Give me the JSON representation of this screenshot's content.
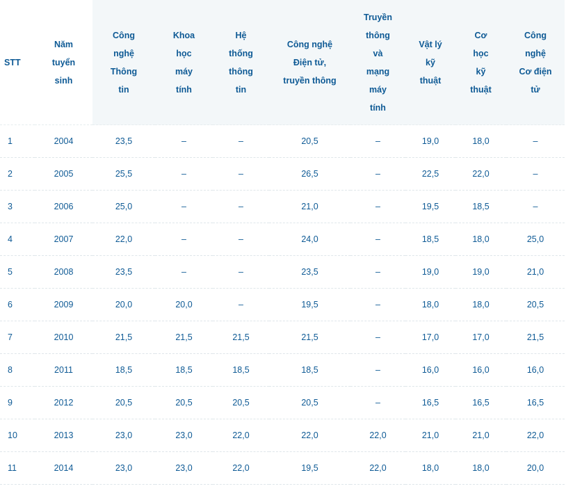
{
  "headers": [
    {
      "lines": [
        "STT"
      ],
      "shaded": false
    },
    {
      "lines": [
        "Năm",
        "tuyển",
        "sinh"
      ],
      "shaded": false
    },
    {
      "lines": [
        "Công",
        "nghệ",
        "Thông",
        "tin"
      ],
      "shaded": true
    },
    {
      "lines": [
        "Khoa",
        "học",
        "máy",
        "tính"
      ],
      "shaded": true
    },
    {
      "lines": [
        "Hệ",
        "thống",
        "thông",
        "tin"
      ],
      "shaded": true
    },
    {
      "lines": [
        "Công nghệ",
        "Điện tử,",
        "truyền thông"
      ],
      "shaded": true
    },
    {
      "lines": [
        "Truyền",
        "thông",
        "và",
        "mạng",
        "máy",
        "tính"
      ],
      "shaded": true
    },
    {
      "lines": [
        "Vật lý",
        "kỹ",
        "thuật"
      ],
      "shaded": true
    },
    {
      "lines": [
        "Cơ",
        "học",
        "kỹ",
        "thuật"
      ],
      "shaded": true
    },
    {
      "lines": [
        "Công",
        "nghệ",
        "Cơ điện",
        "tử"
      ],
      "shaded": true
    }
  ],
  "rows": [
    [
      "1",
      "2004",
      "23,5",
      "–",
      "–",
      "20,5",
      "–",
      "19,0",
      "18,0",
      "–"
    ],
    [
      "2",
      "2005",
      "25,5",
      "–",
      "–",
      "26,5",
      "–",
      "22,5",
      "22,0",
      "–"
    ],
    [
      "3",
      "2006",
      "25,0",
      "–",
      "–",
      "21,0",
      "–",
      "19,5",
      "18,5",
      "–"
    ],
    [
      "4",
      "2007",
      "22,0",
      "–",
      "–",
      "24,0",
      "–",
      "18,5",
      "18,0",
      "25,0"
    ],
    [
      "5",
      "2008",
      "23,5",
      "–",
      "–",
      "23,5",
      "–",
      "19,0",
      "19,0",
      "21,0"
    ],
    [
      "6",
      "2009",
      "20,0",
      "20,0",
      "–",
      "19,5",
      "–",
      "18,0",
      "18,0",
      "20,5"
    ],
    [
      "7",
      "2010",
      "21,5",
      "21,5",
      "21,5",
      "21,5",
      "–",
      "17,0",
      "17,0",
      "21,5"
    ],
    [
      "8",
      "2011",
      "18,5",
      "18,5",
      "18,5",
      "18,5",
      "–",
      "16,0",
      "16,0",
      "16,0"
    ],
    [
      "9",
      "2012",
      "20,5",
      "20,5",
      "20,5",
      "20,5",
      "–",
      "16,5",
      "16,5",
      "16,5"
    ],
    [
      "10",
      "2013",
      "23,0",
      "23,0",
      "22,0",
      "22,0",
      "22,0",
      "21,0",
      "21,0",
      "22,0"
    ],
    [
      "11",
      "2014",
      "23,0",
      "23,0",
      "22,0",
      "19,5",
      "22,0",
      "18,0",
      "18,0",
      "20,0"
    ]
  ],
  "colors": {
    "text": "#0e5a95",
    "header_bg": "#f3f7f9",
    "rule": "#dfe6ea"
  }
}
